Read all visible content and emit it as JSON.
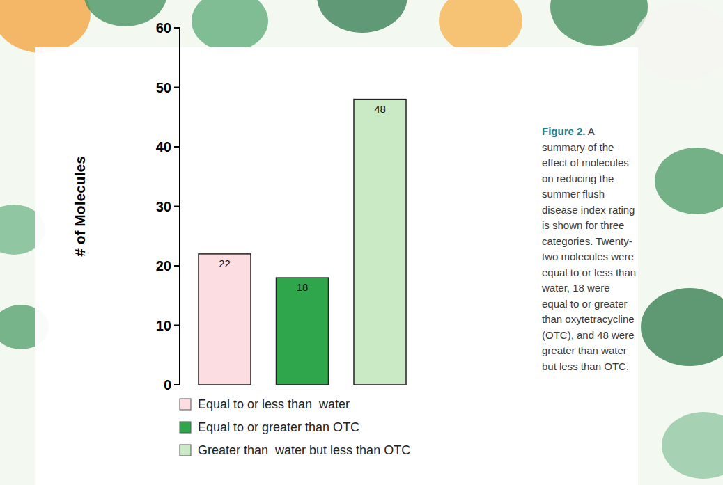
{
  "chart_data": {
    "type": "bar",
    "y_label": "# of Molecules",
    "categories": [
      null
    ],
    "series": [
      {
        "name": "Equal to or less than  water",
        "color": "#fbdde2",
        "values": [
          22
        ]
      },
      {
        "name": "Equal to or greater than OTC",
        "color": "#2fa64b",
        "values": [
          18
        ]
      },
      {
        "name": "Greater than  water but less than OTC",
        "color": "#c9eac5",
        "values": [
          48
        ]
      }
    ],
    "ylim": [
      0,
      60
    ],
    "yticks": [
      0,
      10,
      20,
      30,
      40,
      50,
      60
    ],
    "grid": false,
    "legend": "bottom",
    "data_labels": true,
    "annotations": [
      "Figure 2.",
      "A summary of the effect of molecules on reducing the summer flush disease index rating is shown for three categories. Twenty-two molecules were equal to or less than water, 18 were equal to or greater than oxytetracycline (OTC), and 48 were greater than water but less than OTC."
    ]
  }
}
